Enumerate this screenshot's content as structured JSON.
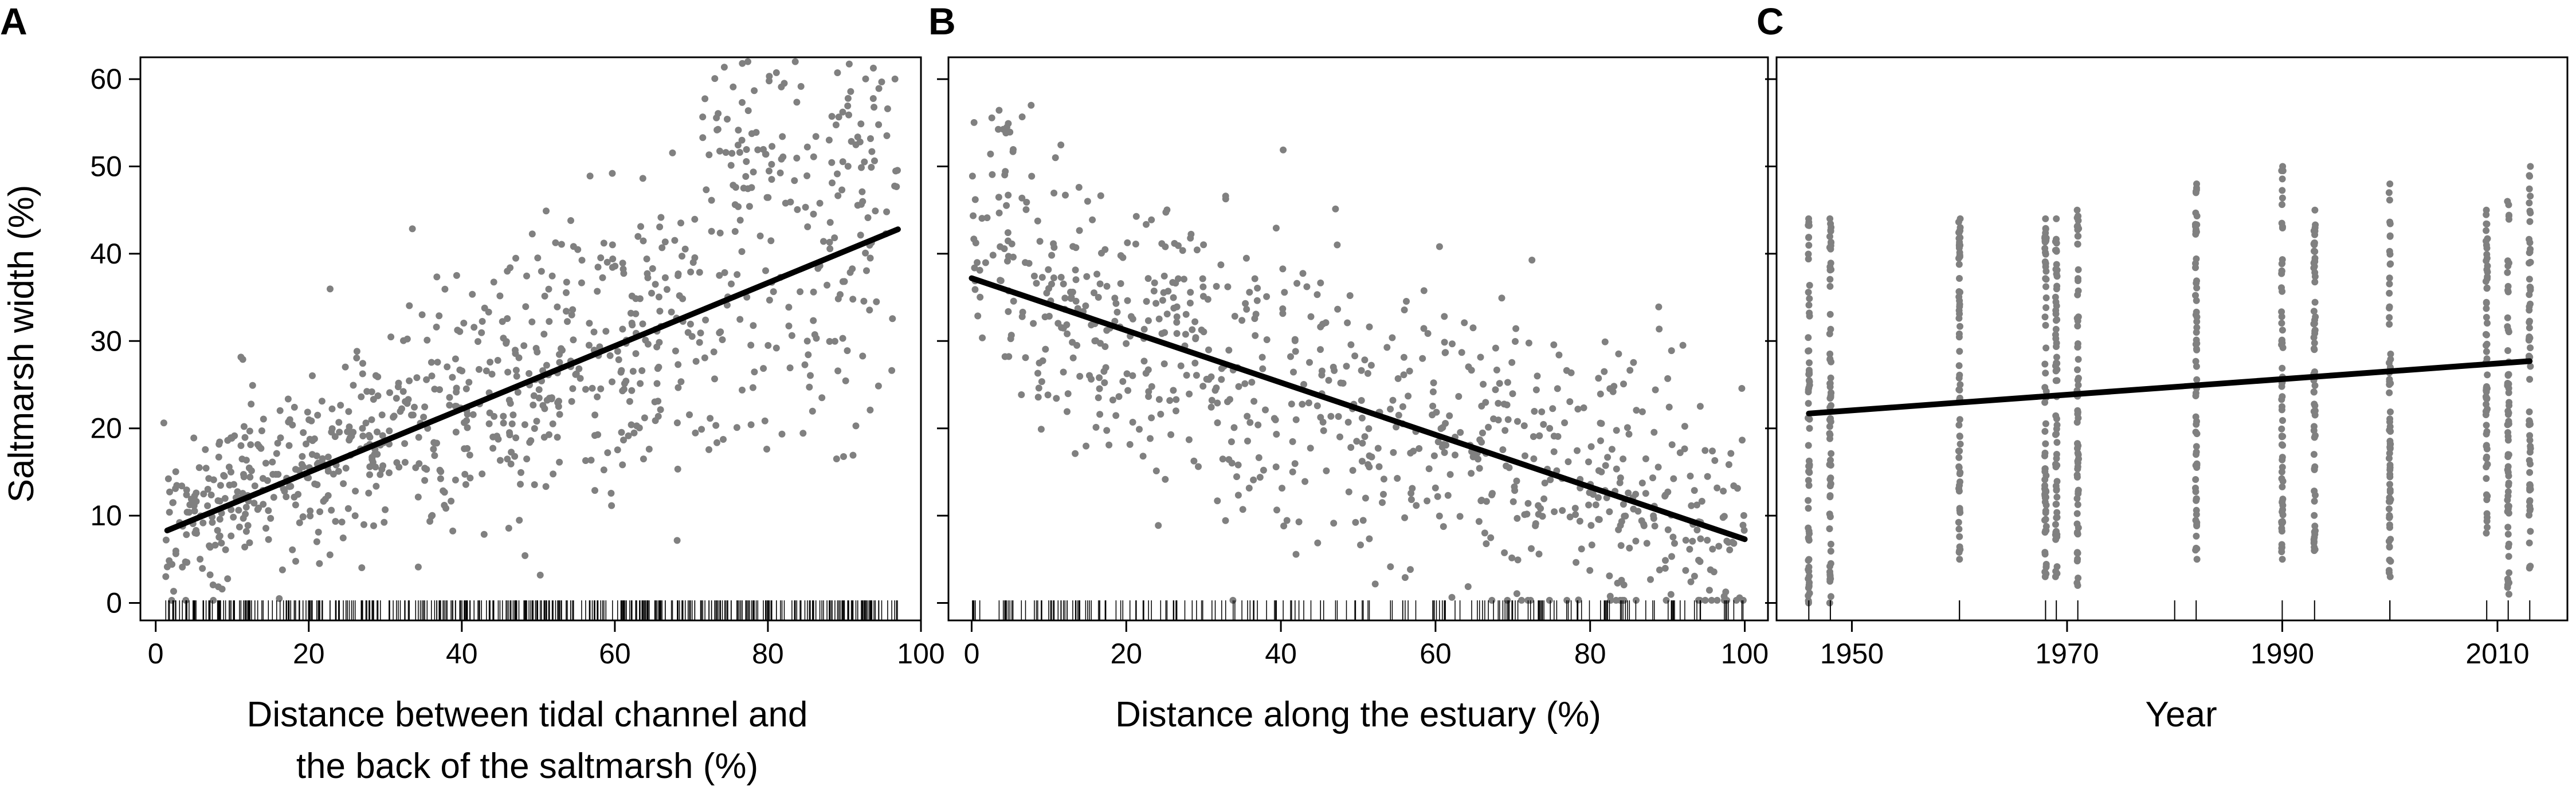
{
  "chart_data": [
    {
      "panel": "A",
      "type": "scatter",
      "xlabel": [
        "Distance between tidal channel and",
        "the back of the saltmarsh (%)"
      ],
      "ylabel": "Saltmarsh width (%)",
      "xlim": [
        -2,
        100
      ],
      "ylim": [
        -2,
        62.5
      ],
      "xticks": [
        0,
        20,
        40,
        60,
        80,
        100
      ],
      "yticks": [
        0,
        10,
        20,
        30,
        40,
        50,
        60
      ],
      "rug": true,
      "point_color": "#808080",
      "fit": {
        "x": [
          1.5,
          97
        ],
        "y": [
          8.3,
          42.8
        ]
      },
      "points": {
        "n": 900,
        "x_range": [
          1,
          97
        ],
        "y_noise_sd": 7.5,
        "upper_tail": {
          "x_from": 70,
          "y_to": 62
        }
      }
    },
    {
      "panel": "B",
      "type": "scatter",
      "xlabel": [
        "Distance along the estuary (%)"
      ],
      "xlim": [
        -3,
        103
      ],
      "ylim": [
        -2,
        62.5
      ],
      "xticks": [
        0,
        20,
        40,
        60,
        80,
        100
      ],
      "yticks": [
        0,
        10,
        20,
        30,
        40,
        50,
        60
      ],
      "rug": true,
      "point_color": "#808080",
      "fit": {
        "x": [
          0,
          100
        ],
        "y": [
          37.2,
          7.3
        ]
      },
      "points": {
        "n": 800,
        "x_range": [
          0,
          100
        ],
        "y_noise_sd": 8,
        "peak": {
          "x_range": [
            0,
            7
          ],
          "y_to": 57
        }
      }
    },
    {
      "panel": "C",
      "type": "scatter",
      "xlabel": [
        "Year"
      ],
      "xlim": [
        1943,
        2016.5
      ],
      "ylim": [
        -2,
        62.5
      ],
      "xticks": [
        1950,
        1970,
        1990,
        2010
      ],
      "minor_xticks": [
        1960,
        1980,
        2000
      ],
      "yticks": [
        0,
        10,
        20,
        30,
        40,
        50,
        60
      ],
      "rug": true,
      "point_color": "#808080",
      "fit": {
        "x": [
          1946,
          2013
        ],
        "y": [
          21.7,
          27.7
        ]
      },
      "years": [
        1946,
        1948,
        1960,
        1968,
        1969,
        1971,
        1982,
        1990,
        1993,
        2000,
        2009,
        2011,
        2013
      ],
      "year_ranges": [
        [
          0,
          44
        ],
        [
          0,
          44
        ],
        [
          5,
          44
        ],
        [
          3,
          44
        ],
        [
          3,
          44
        ],
        [
          2,
          45
        ],
        [
          5,
          48
        ],
        [
          5,
          50
        ],
        [
          6,
          45
        ],
        [
          3,
          48
        ],
        [
          8,
          45
        ],
        [
          1,
          46
        ],
        [
          4,
          50
        ]
      ]
    }
  ]
}
